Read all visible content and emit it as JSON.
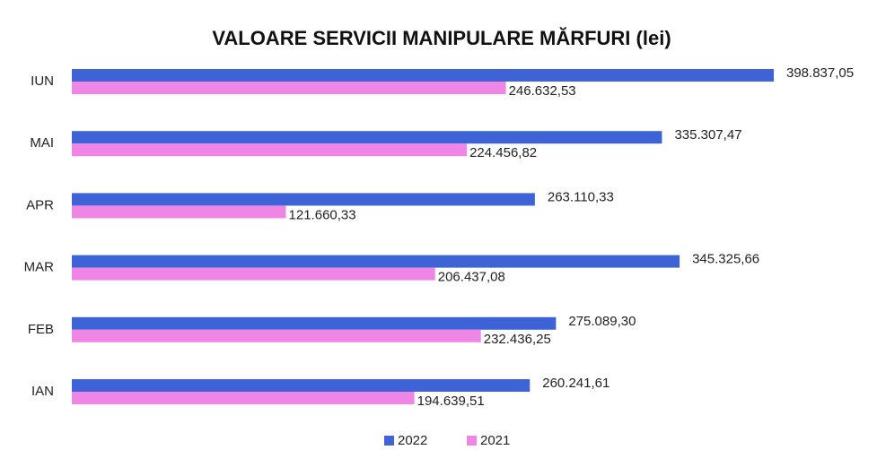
{
  "chart_data": {
    "type": "bar",
    "orientation": "horizontal",
    "title": "VALOARE SERVICII MANIPULARE MĂRFURI (lei)",
    "categories": [
      "IUN",
      "MAI",
      "APR",
      "MAR",
      "FEB",
      "IAN"
    ],
    "series": [
      {
        "name": "2022",
        "color": "#3d63d6",
        "values": [
          398837.05,
          335307.47,
          263110.33,
          345325.66,
          275089.3,
          260241.61
        ],
        "value_labels": [
          "398.837,05",
          "335.307,47",
          "263.110,33",
          "345.325,66",
          "275.089,30",
          "260.241,61"
        ]
      },
      {
        "name": "2021",
        "color": "#ef86e6",
        "values": [
          246632.53,
          224456.82,
          121660.33,
          206437.08,
          232436.25,
          194639.51
        ],
        "value_labels": [
          "246.632,53",
          "224.456,82",
          "121.660,33",
          "206.437,08",
          "232.436,25",
          "194.639,51"
        ]
      }
    ]
  }
}
